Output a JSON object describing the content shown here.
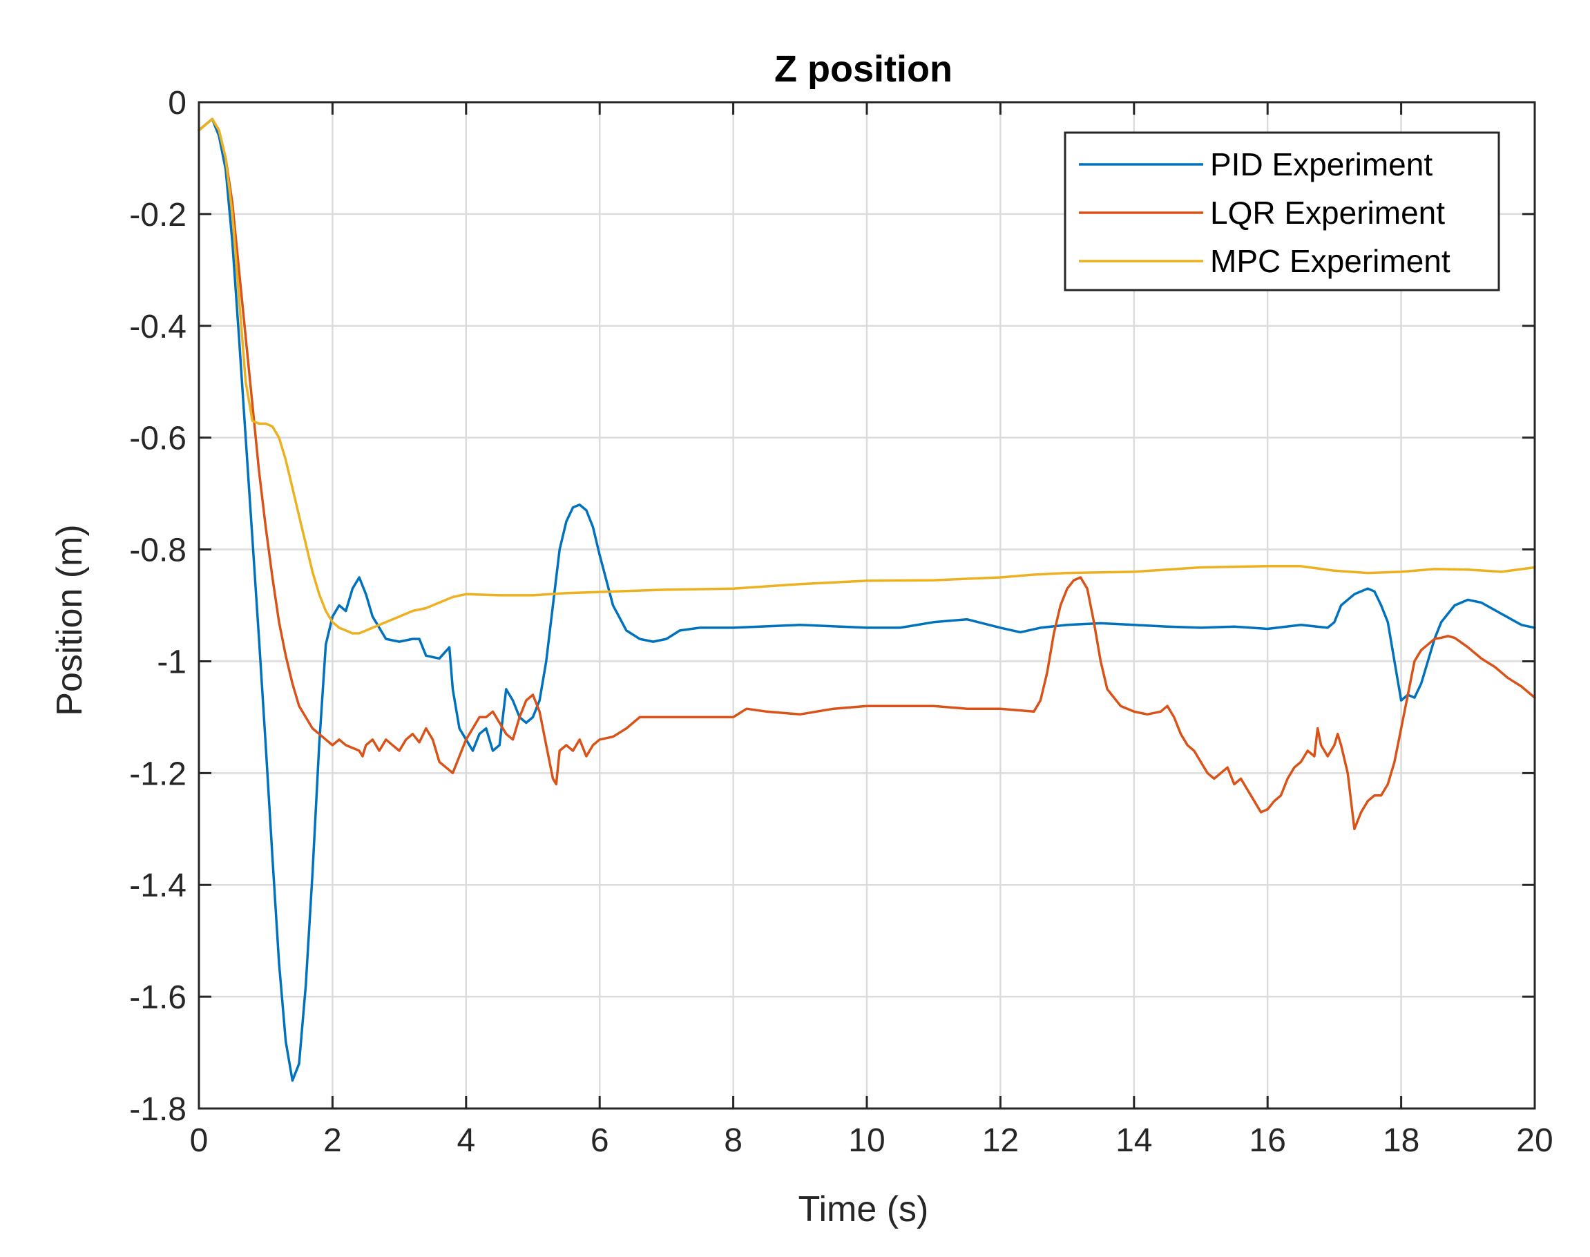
{
  "chart_data": {
    "type": "line",
    "title": "Z position",
    "xlabel": "Time (s)",
    "ylabel": "Position (m)",
    "xlim": [
      0,
      20
    ],
    "ylim": [
      -1.8,
      0
    ],
    "xticks": [
      0,
      2,
      4,
      6,
      8,
      10,
      12,
      14,
      16,
      18,
      20
    ],
    "xtick_labels": [
      "0",
      "2",
      "4",
      "6",
      "8",
      "10",
      "12",
      "14",
      "16",
      "18",
      "20"
    ],
    "yticks": [
      0,
      -0.2,
      -0.4,
      -0.6,
      -0.8,
      -1,
      -1.2,
      -1.4,
      -1.6,
      -1.8
    ],
    "ytick_labels": [
      "0",
      "-0.2",
      "-0.4",
      "-0.6",
      "-0.8",
      "-1",
      "-1.2",
      "-1.4",
      "-1.6",
      "-1.8"
    ],
    "grid": true,
    "legend_position": "top-right",
    "series": [
      {
        "name": "PID Experiment",
        "color": "#0072BD",
        "points": [
          [
            0,
            -0.05
          ],
          [
            0.1,
            -0.04
          ],
          [
            0.2,
            -0.03
          ],
          [
            0.3,
            -0.06
          ],
          [
            0.4,
            -0.12
          ],
          [
            0.5,
            -0.25
          ],
          [
            0.6,
            -0.42
          ],
          [
            0.7,
            -0.6
          ],
          [
            0.8,
            -0.78
          ],
          [
            0.9,
            -0.96
          ],
          [
            1.0,
            -1.15
          ],
          [
            1.1,
            -1.35
          ],
          [
            1.2,
            -1.54
          ],
          [
            1.3,
            -1.68
          ],
          [
            1.4,
            -1.75
          ],
          [
            1.5,
            -1.72
          ],
          [
            1.6,
            -1.58
          ],
          [
            1.7,
            -1.38
          ],
          [
            1.8,
            -1.15
          ],
          [
            1.9,
            -0.97
          ],
          [
            2.0,
            -0.92
          ],
          [
            2.1,
            -0.9
          ],
          [
            2.2,
            -0.91
          ],
          [
            2.3,
            -0.87
          ],
          [
            2.4,
            -0.85
          ],
          [
            2.5,
            -0.88
          ],
          [
            2.6,
            -0.92
          ],
          [
            2.8,
            -0.96
          ],
          [
            3.0,
            -0.965
          ],
          [
            3.2,
            -0.96
          ],
          [
            3.3,
            -0.96
          ],
          [
            3.4,
            -0.99
          ],
          [
            3.6,
            -0.995
          ],
          [
            3.75,
            -0.975
          ],
          [
            3.8,
            -1.05
          ],
          [
            3.9,
            -1.12
          ],
          [
            4.0,
            -1.14
          ],
          [
            4.1,
            -1.16
          ],
          [
            4.2,
            -1.13
          ],
          [
            4.3,
            -1.12
          ],
          [
            4.4,
            -1.16
          ],
          [
            4.5,
            -1.15
          ],
          [
            4.6,
            -1.05
          ],
          [
            4.7,
            -1.07
          ],
          [
            4.8,
            -1.1
          ],
          [
            4.9,
            -1.11
          ],
          [
            5.0,
            -1.1
          ],
          [
            5.1,
            -1.07
          ],
          [
            5.2,
            -1.0
          ],
          [
            5.3,
            -0.9
          ],
          [
            5.4,
            -0.8
          ],
          [
            5.5,
            -0.75
          ],
          [
            5.6,
            -0.725
          ],
          [
            5.7,
            -0.72
          ],
          [
            5.8,
            -0.73
          ],
          [
            5.9,
            -0.76
          ],
          [
            6.0,
            -0.81
          ],
          [
            6.2,
            -0.9
          ],
          [
            6.4,
            -0.945
          ],
          [
            6.6,
            -0.96
          ],
          [
            6.8,
            -0.965
          ],
          [
            7.0,
            -0.96
          ],
          [
            7.2,
            -0.945
          ],
          [
            7.5,
            -0.94
          ],
          [
            8.0,
            -0.94
          ],
          [
            9.0,
            -0.935
          ],
          [
            10.0,
            -0.94
          ],
          [
            10.5,
            -0.94
          ],
          [
            11.0,
            -0.93
          ],
          [
            11.5,
            -0.925
          ],
          [
            12.0,
            -0.94
          ],
          [
            12.3,
            -0.948
          ],
          [
            12.6,
            -0.94
          ],
          [
            13.0,
            -0.935
          ],
          [
            13.5,
            -0.932
          ],
          [
            14.0,
            -0.935
          ],
          [
            14.5,
            -0.938
          ],
          [
            15.0,
            -0.94
          ],
          [
            15.5,
            -0.938
          ],
          [
            16.0,
            -0.942
          ],
          [
            16.5,
            -0.935
          ],
          [
            16.9,
            -0.94
          ],
          [
            17.0,
            -0.93
          ],
          [
            17.1,
            -0.9
          ],
          [
            17.2,
            -0.89
          ],
          [
            17.3,
            -0.88
          ],
          [
            17.4,
            -0.875
          ],
          [
            17.5,
            -0.87
          ],
          [
            17.6,
            -0.875
          ],
          [
            17.7,
            -0.9
          ],
          [
            17.8,
            -0.93
          ],
          [
            17.9,
            -1.0
          ],
          [
            18.0,
            -1.07
          ],
          [
            18.1,
            -1.06
          ],
          [
            18.2,
            -1.065
          ],
          [
            18.3,
            -1.04
          ],
          [
            18.4,
            -1.0
          ],
          [
            18.5,
            -0.96
          ],
          [
            18.6,
            -0.93
          ],
          [
            18.8,
            -0.9
          ],
          [
            19.0,
            -0.89
          ],
          [
            19.2,
            -0.895
          ],
          [
            19.5,
            -0.915
          ],
          [
            19.8,
            -0.935
          ],
          [
            20.0,
            -0.94
          ]
        ]
      },
      {
        "name": "LQR Experiment",
        "color": "#D95319",
        "points": [
          [
            0,
            -0.05
          ],
          [
            0.1,
            -0.04
          ],
          [
            0.2,
            -0.03
          ],
          [
            0.3,
            -0.05
          ],
          [
            0.4,
            -0.1
          ],
          [
            0.5,
            -0.18
          ],
          [
            0.6,
            -0.3
          ],
          [
            0.7,
            -0.42
          ],
          [
            0.8,
            -0.54
          ],
          [
            0.9,
            -0.66
          ],
          [
            1.0,
            -0.76
          ],
          [
            1.1,
            -0.85
          ],
          [
            1.2,
            -0.93
          ],
          [
            1.3,
            -0.99
          ],
          [
            1.4,
            -1.04
          ],
          [
            1.5,
            -1.08
          ],
          [
            1.6,
            -1.1
          ],
          [
            1.7,
            -1.12
          ],
          [
            1.8,
            -1.13
          ],
          [
            1.9,
            -1.14
          ],
          [
            2.0,
            -1.15
          ],
          [
            2.1,
            -1.14
          ],
          [
            2.2,
            -1.15
          ],
          [
            2.3,
            -1.155
          ],
          [
            2.4,
            -1.16
          ],
          [
            2.45,
            -1.17
          ],
          [
            2.5,
            -1.15
          ],
          [
            2.6,
            -1.14
          ],
          [
            2.7,
            -1.16
          ],
          [
            2.8,
            -1.14
          ],
          [
            2.9,
            -1.15
          ],
          [
            3.0,
            -1.16
          ],
          [
            3.1,
            -1.14
          ],
          [
            3.2,
            -1.13
          ],
          [
            3.3,
            -1.145
          ],
          [
            3.4,
            -1.12
          ],
          [
            3.5,
            -1.14
          ],
          [
            3.6,
            -1.18
          ],
          [
            3.7,
            -1.19
          ],
          [
            3.8,
            -1.2
          ],
          [
            3.9,
            -1.17
          ],
          [
            4.0,
            -1.14
          ],
          [
            4.1,
            -1.12
          ],
          [
            4.2,
            -1.1
          ],
          [
            4.3,
            -1.1
          ],
          [
            4.4,
            -1.09
          ],
          [
            4.5,
            -1.11
          ],
          [
            4.6,
            -1.13
          ],
          [
            4.7,
            -1.14
          ],
          [
            4.8,
            -1.1
          ],
          [
            4.9,
            -1.07
          ],
          [
            5.0,
            -1.06
          ],
          [
            5.1,
            -1.09
          ],
          [
            5.2,
            -1.15
          ],
          [
            5.3,
            -1.21
          ],
          [
            5.35,
            -1.22
          ],
          [
            5.4,
            -1.16
          ],
          [
            5.5,
            -1.15
          ],
          [
            5.6,
            -1.16
          ],
          [
            5.7,
            -1.14
          ],
          [
            5.8,
            -1.17
          ],
          [
            5.9,
            -1.15
          ],
          [
            6.0,
            -1.14
          ],
          [
            6.2,
            -1.135
          ],
          [
            6.4,
            -1.12
          ],
          [
            6.6,
            -1.1
          ],
          [
            7.0,
            -1.1
          ],
          [
            7.5,
            -1.1
          ],
          [
            8.0,
            -1.1
          ],
          [
            8.2,
            -1.085
          ],
          [
            8.5,
            -1.09
          ],
          [
            9.0,
            -1.095
          ],
          [
            9.5,
            -1.085
          ],
          [
            10.0,
            -1.08
          ],
          [
            11.0,
            -1.08
          ],
          [
            11.5,
            -1.085
          ],
          [
            12.0,
            -1.085
          ],
          [
            12.5,
            -1.09
          ],
          [
            12.6,
            -1.07
          ],
          [
            12.7,
            -1.02
          ],
          [
            12.8,
            -0.95
          ],
          [
            12.9,
            -0.9
          ],
          [
            13.0,
            -0.87
          ],
          [
            13.1,
            -0.855
          ],
          [
            13.2,
            -0.85
          ],
          [
            13.3,
            -0.87
          ],
          [
            13.4,
            -0.93
          ],
          [
            13.5,
            -1.0
          ],
          [
            13.6,
            -1.05
          ],
          [
            13.8,
            -1.08
          ],
          [
            14.0,
            -1.09
          ],
          [
            14.2,
            -1.095
          ],
          [
            14.4,
            -1.09
          ],
          [
            14.5,
            -1.08
          ],
          [
            14.6,
            -1.1
          ],
          [
            14.7,
            -1.13
          ],
          [
            14.8,
            -1.15
          ],
          [
            14.9,
            -1.16
          ],
          [
            15.0,
            -1.18
          ],
          [
            15.1,
            -1.2
          ],
          [
            15.2,
            -1.21
          ],
          [
            15.3,
            -1.2
          ],
          [
            15.4,
            -1.19
          ],
          [
            15.5,
            -1.22
          ],
          [
            15.6,
            -1.21
          ],
          [
            15.7,
            -1.23
          ],
          [
            15.8,
            -1.25
          ],
          [
            15.9,
            -1.27
          ],
          [
            16.0,
            -1.265
          ],
          [
            16.1,
            -1.25
          ],
          [
            16.2,
            -1.24
          ],
          [
            16.3,
            -1.21
          ],
          [
            16.4,
            -1.19
          ],
          [
            16.5,
            -1.18
          ],
          [
            16.6,
            -1.16
          ],
          [
            16.7,
            -1.17
          ],
          [
            16.75,
            -1.12
          ],
          [
            16.8,
            -1.15
          ],
          [
            16.9,
            -1.17
          ],
          [
            17.0,
            -1.15
          ],
          [
            17.05,
            -1.13
          ],
          [
            17.1,
            -1.15
          ],
          [
            17.2,
            -1.2
          ],
          [
            17.3,
            -1.3
          ],
          [
            17.4,
            -1.27
          ],
          [
            17.5,
            -1.25
          ],
          [
            17.6,
            -1.24
          ],
          [
            17.7,
            -1.24
          ],
          [
            17.8,
            -1.22
          ],
          [
            17.9,
            -1.18
          ],
          [
            18.0,
            -1.12
          ],
          [
            18.1,
            -1.06
          ],
          [
            18.2,
            -1.0
          ],
          [
            18.3,
            -0.98
          ],
          [
            18.4,
            -0.97
          ],
          [
            18.5,
            -0.96
          ],
          [
            18.6,
            -0.958
          ],
          [
            18.7,
            -0.955
          ],
          [
            18.8,
            -0.958
          ],
          [
            19.0,
            -0.975
          ],
          [
            19.2,
            -0.995
          ],
          [
            19.4,
            -1.01
          ],
          [
            19.6,
            -1.03
          ],
          [
            19.8,
            -1.045
          ],
          [
            20.0,
            -1.065
          ]
        ]
      },
      {
        "name": "MPC Experiment",
        "color": "#EDB120",
        "points": [
          [
            0,
            -0.05
          ],
          [
            0.1,
            -0.04
          ],
          [
            0.2,
            -0.03
          ],
          [
            0.3,
            -0.05
          ],
          [
            0.4,
            -0.1
          ],
          [
            0.5,
            -0.2
          ],
          [
            0.6,
            -0.35
          ],
          [
            0.7,
            -0.5
          ],
          [
            0.8,
            -0.57
          ],
          [
            0.9,
            -0.575
          ],
          [
            1.0,
            -0.575
          ],
          [
            1.1,
            -0.58
          ],
          [
            1.2,
            -0.6
          ],
          [
            1.3,
            -0.64
          ],
          [
            1.4,
            -0.69
          ],
          [
            1.5,
            -0.74
          ],
          [
            1.6,
            -0.79
          ],
          [
            1.7,
            -0.84
          ],
          [
            1.8,
            -0.88
          ],
          [
            1.9,
            -0.91
          ],
          [
            2.0,
            -0.93
          ],
          [
            2.1,
            -0.94
          ],
          [
            2.2,
            -0.945
          ],
          [
            2.3,
            -0.95
          ],
          [
            2.4,
            -0.95
          ],
          [
            2.6,
            -0.94
          ],
          [
            2.8,
            -0.93
          ],
          [
            3.0,
            -0.92
          ],
          [
            3.2,
            -0.91
          ],
          [
            3.4,
            -0.905
          ],
          [
            3.6,
            -0.895
          ],
          [
            3.8,
            -0.885
          ],
          [
            4.0,
            -0.88
          ],
          [
            4.5,
            -0.882
          ],
          [
            5.0,
            -0.882
          ],
          [
            5.5,
            -0.878
          ],
          [
            6.0,
            -0.876
          ],
          [
            7.0,
            -0.872
          ],
          [
            8.0,
            -0.87
          ],
          [
            9.0,
            -0.862
          ],
          [
            10.0,
            -0.856
          ],
          [
            11.0,
            -0.855
          ],
          [
            12.0,
            -0.85
          ],
          [
            12.5,
            -0.845
          ],
          [
            13.0,
            -0.842
          ],
          [
            14.0,
            -0.84
          ],
          [
            15.0,
            -0.832
          ],
          [
            16.0,
            -0.83
          ],
          [
            16.5,
            -0.83
          ],
          [
            17.0,
            -0.838
          ],
          [
            17.5,
            -0.842
          ],
          [
            18.0,
            -0.84
          ],
          [
            18.5,
            -0.835
          ],
          [
            19.0,
            -0.836
          ],
          [
            19.5,
            -0.84
          ],
          [
            20.0,
            -0.832
          ]
        ]
      }
    ]
  }
}
